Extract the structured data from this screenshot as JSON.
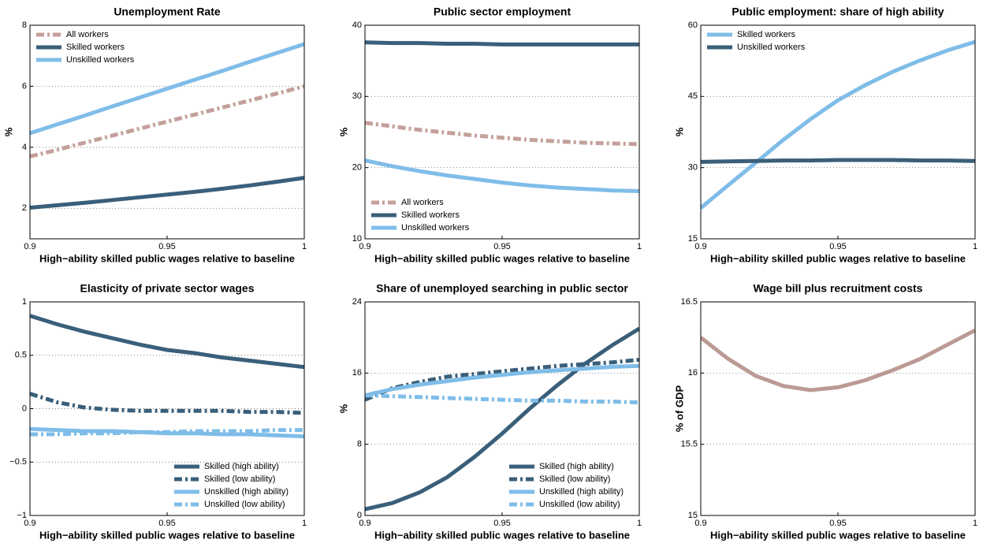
{
  "chart_data": [
    {
      "type": "line",
      "title": "Unemployment Rate",
      "xlabel": "High−ability skilled public wages relative to baseline",
      "ylabel": "%",
      "x": [
        0.9,
        0.91,
        0.92,
        0.93,
        0.94,
        0.95,
        0.96,
        0.97,
        0.98,
        0.99,
        1.0
      ],
      "xlim": [
        0.9,
        1
      ],
      "xticks": [
        0.9,
        0.95,
        1
      ],
      "ylim": [
        1,
        8
      ],
      "yticks": [
        2,
        4,
        6,
        8
      ],
      "grid": true,
      "legend": "upper left",
      "series": [
        {
          "name": "All workers",
          "color": "#c4a09a",
          "style": "dashdot",
          "values": [
            3.7,
            3.92,
            4.15,
            4.38,
            4.61,
            4.84,
            5.07,
            5.3,
            5.53,
            5.76,
            6.0
          ]
        },
        {
          "name": "Skilled workers",
          "color": "#3a5f7a",
          "style": "solid",
          "values": [
            2.02,
            2.1,
            2.18,
            2.27,
            2.36,
            2.45,
            2.54,
            2.64,
            2.75,
            2.87,
            3.0
          ]
        },
        {
          "name": "Unskilled workers",
          "color": "#7fbde8",
          "style": "solid",
          "values": [
            4.46,
            4.75,
            5.04,
            5.34,
            5.63,
            5.92,
            6.21,
            6.5,
            6.8,
            7.09,
            7.38
          ]
        }
      ]
    },
    {
      "type": "line",
      "title": "Public sector employment",
      "xlabel": "High−ability skilled public wages relative to baseline",
      "ylabel": "%",
      "x": [
        0.9,
        0.91,
        0.92,
        0.93,
        0.94,
        0.95,
        0.96,
        0.97,
        0.98,
        0.99,
        1.0
      ],
      "xlim": [
        0.9,
        1
      ],
      "xticks": [
        0.9,
        0.95,
        1
      ],
      "ylim": [
        10,
        40
      ],
      "yticks": [
        10,
        20,
        30,
        40
      ],
      "grid": true,
      "legend": "lower left",
      "series": [
        {
          "name": "All workers",
          "color": "#c4a09a",
          "style": "dashdot",
          "values": [
            26.3,
            25.8,
            25.3,
            24.9,
            24.5,
            24.2,
            23.9,
            23.7,
            23.5,
            23.4,
            23.3
          ]
        },
        {
          "name": "Skilled workers",
          "color": "#3a5f7a",
          "style": "solid",
          "values": [
            37.6,
            37.5,
            37.5,
            37.4,
            37.4,
            37.3,
            37.3,
            37.3,
            37.3,
            37.3,
            37.3
          ]
        },
        {
          "name": "Unskilled workers",
          "color": "#7fbde8",
          "style": "solid",
          "values": [
            21.0,
            20.2,
            19.5,
            18.9,
            18.4,
            17.9,
            17.5,
            17.2,
            17.0,
            16.8,
            16.7
          ]
        }
      ]
    },
    {
      "type": "line",
      "title": "Public employment: share of high ability",
      "xlabel": "High−ability skilled public wages relative to baseline",
      "ylabel": "%",
      "x": [
        0.9,
        0.91,
        0.92,
        0.93,
        0.94,
        0.95,
        0.96,
        0.97,
        0.98,
        0.99,
        1.0
      ],
      "xlim": [
        0.9,
        1
      ],
      "xticks": [
        0.9,
        0.95,
        1
      ],
      "ylim": [
        15,
        60
      ],
      "yticks": [
        15,
        30,
        45,
        60
      ],
      "grid": true,
      "legend": "upper left",
      "series": [
        {
          "name": "Skilled workers",
          "color": "#7fbde8",
          "style": "solid",
          "values": [
            21.5,
            26.3,
            31.0,
            35.8,
            40.2,
            44.2,
            47.4,
            50.2,
            52.6,
            54.7,
            56.5
          ]
        },
        {
          "name": "Unskilled workers",
          "color": "#3a5f7a",
          "style": "solid",
          "values": [
            31.2,
            31.3,
            31.4,
            31.5,
            31.5,
            31.6,
            31.6,
            31.6,
            31.5,
            31.5,
            31.4
          ]
        }
      ]
    },
    {
      "type": "line",
      "title": "Elasticity of private sector wages",
      "xlabel": "High−ability skilled public wages relative to baseline",
      "x": [
        0.9,
        0.91,
        0.92,
        0.93,
        0.94,
        0.95,
        0.96,
        0.97,
        0.98,
        0.99,
        1.0
      ],
      "xlim": [
        0.9,
        1
      ],
      "xticks": [
        0.9,
        0.95,
        1
      ],
      "ylim": [
        -1,
        1
      ],
      "yticks": [
        {
          "value": -1,
          "label": "−1"
        },
        {
          "value": -0.5,
          "label": "−0.5"
        },
        0,
        0.5,
        1
      ],
      "grid": true,
      "legend": "lower right",
      "series": [
        {
          "name": "Skilled (high ability)",
          "color": "#3a5f7a",
          "style": "solid",
          "values": [
            0.87,
            0.79,
            0.72,
            0.66,
            0.6,
            0.55,
            0.52,
            0.48,
            0.45,
            0.42,
            0.39
          ]
        },
        {
          "name": "Skilled (low ability)",
          "color": "#3a5f7a",
          "style": "dashdot",
          "values": [
            0.14,
            0.06,
            0.01,
            -0.01,
            -0.02,
            -0.02,
            -0.02,
            -0.02,
            -0.03,
            -0.03,
            -0.04
          ]
        },
        {
          "name": "Unskilled (high ability)",
          "color": "#7fbde8",
          "style": "solid",
          "values": [
            -0.19,
            -0.2,
            -0.21,
            -0.21,
            -0.22,
            -0.23,
            -0.23,
            -0.24,
            -0.24,
            -0.25,
            -0.26
          ]
        },
        {
          "name": "Unskilled (low ability)",
          "color": "#7fbde8",
          "style": "dashdot",
          "values": [
            -0.24,
            -0.24,
            -0.23,
            -0.23,
            -0.22,
            -0.22,
            -0.21,
            -0.21,
            -0.21,
            -0.2,
            -0.2
          ]
        }
      ]
    },
    {
      "type": "line",
      "title": "Share of unemployed searching in public sector",
      "xlabel": "High−ability skilled public wages relative to baseline",
      "ylabel": "%",
      "x": [
        0.9,
        0.91,
        0.92,
        0.93,
        0.94,
        0.95,
        0.96,
        0.97,
        0.98,
        0.99,
        1.0
      ],
      "xlim": [
        0.9,
        1
      ],
      "xticks": [
        0.9,
        0.95,
        1
      ],
      "ylim": [
        0,
        24
      ],
      "yticks": [
        0,
        8,
        16,
        24
      ],
      "grid": true,
      "legend": "lower right",
      "series": [
        {
          "name": "Skilled (high ability)",
          "color": "#3a5f7a",
          "style": "solid",
          "values": [
            0.7,
            1.4,
            2.6,
            4.3,
            6.6,
            9.2,
            12.0,
            14.6,
            17.0,
            19.1,
            21.0
          ]
        },
        {
          "name": "Skilled (low ability)",
          "color": "#3a5f7a",
          "style": "dashdot",
          "values": [
            13.0,
            14.3,
            15.0,
            15.6,
            15.9,
            16.2,
            16.5,
            16.8,
            17.0,
            17.2,
            17.5
          ]
        },
        {
          "name": "Unskilled (high ability)",
          "color": "#7fbde8",
          "style": "solid",
          "values": [
            13.5,
            14.2,
            14.7,
            15.1,
            15.5,
            15.8,
            16.1,
            16.3,
            16.5,
            16.7,
            16.8
          ]
        },
        {
          "name": "Unskilled (low ability)",
          "color": "#7fbde8",
          "style": "dashdot",
          "values": [
            13.5,
            13.4,
            13.3,
            13.2,
            13.1,
            13.0,
            12.9,
            12.9,
            12.8,
            12.8,
            12.7
          ]
        }
      ]
    },
    {
      "type": "line",
      "title": "Wage bill plus recruitment costs",
      "xlabel": "High−ability skilled public wages relative to baseline",
      "ylabel": "% of GDP",
      "x": [
        0.9,
        0.91,
        0.92,
        0.93,
        0.94,
        0.95,
        0.96,
        0.97,
        0.98,
        0.99,
        1.0
      ],
      "xlim": [
        0.9,
        1
      ],
      "xticks": [
        0.9,
        0.95,
        1
      ],
      "ylim": [
        15,
        16.5
      ],
      "yticks": [
        15,
        15.5,
        16,
        16.5
      ],
      "grid": true,
      "color": "#bc9a94",
      "values": [
        16.25,
        16.1,
        15.98,
        15.91,
        15.88,
        15.9,
        15.95,
        16.02,
        16.1,
        16.2,
        16.3
      ]
    }
  ]
}
